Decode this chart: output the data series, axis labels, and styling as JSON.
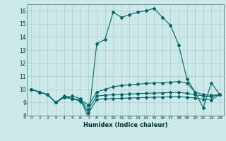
{
  "xlabel": "Humidex (Indice chaleur)",
  "xlim": [
    -0.5,
    23.5
  ],
  "ylim": [
    8,
    16.5
  ],
  "yticks": [
    8,
    9,
    10,
    11,
    12,
    13,
    14,
    15,
    16
  ],
  "xticks": [
    0,
    1,
    2,
    3,
    4,
    5,
    6,
    7,
    8,
    9,
    10,
    11,
    12,
    13,
    14,
    15,
    16,
    17,
    18,
    19,
    20,
    21,
    22,
    23
  ],
  "bg_color": "#cce8e8",
  "grid_color": "#aacccc",
  "line_color": "#006666",
  "line_main": [
    10.0,
    9.8,
    9.6,
    9.0,
    9.4,
    9.5,
    9.3,
    7.8,
    13.5,
    13.8,
    15.9,
    15.5,
    15.7,
    15.9,
    16.0,
    16.2,
    15.5,
    14.9,
    13.4,
    10.8,
    9.8,
    8.6,
    10.5,
    9.6
  ],
  "line_mid": [
    10.0,
    9.8,
    9.6,
    9.0,
    9.5,
    9.3,
    9.2,
    8.8,
    9.8,
    10.0,
    10.2,
    10.3,
    10.35,
    10.4,
    10.45,
    10.5,
    10.5,
    10.55,
    10.6,
    10.5,
    9.8,
    9.6,
    9.55,
    9.6
  ],
  "line_flat": [
    10.0,
    9.8,
    9.6,
    9.0,
    9.4,
    9.3,
    9.15,
    8.5,
    9.5,
    9.55,
    9.6,
    9.62,
    9.65,
    9.68,
    9.7,
    9.72,
    9.74,
    9.76,
    9.78,
    9.7,
    9.6,
    9.5,
    9.45,
    9.6
  ],
  "line_low": [
    10.0,
    9.8,
    9.6,
    9.0,
    9.4,
    9.3,
    9.1,
    8.2,
    9.25,
    9.28,
    9.3,
    9.32,
    9.34,
    9.36,
    9.38,
    9.4,
    9.42,
    9.44,
    9.46,
    9.4,
    9.35,
    9.25,
    9.2,
    9.6
  ]
}
